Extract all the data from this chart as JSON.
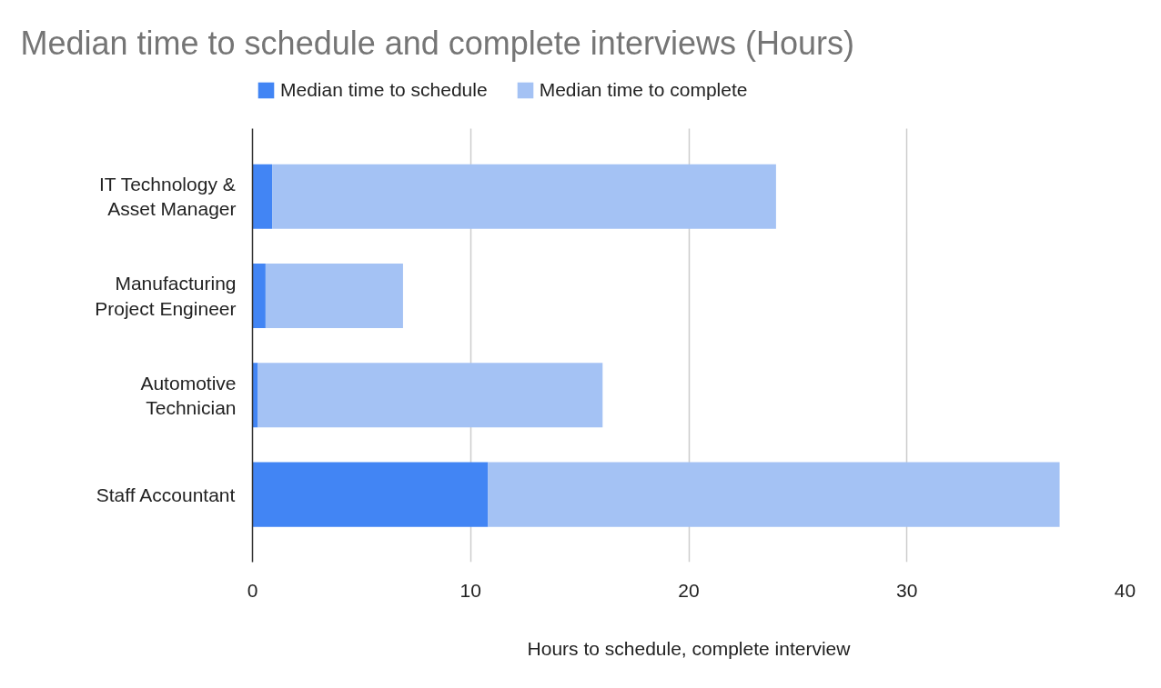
{
  "chart_data": {
    "type": "bar",
    "orientation": "horizontal",
    "stacked": true,
    "title": "Median time to schedule and complete interviews (Hours)",
    "xlabel": "Hours to schedule, complete interview",
    "categories": [
      "IT Technology & Asset Manager",
      "Manufacturing Project Engineer",
      "Automotive Technician",
      "Staff Accountant"
    ],
    "series": [
      {
        "name": "Median time to schedule",
        "color": "#4285f4",
        "values": [
          0.9,
          0.6,
          0.25,
          10.8
        ]
      },
      {
        "name": "Median time to complete",
        "color": "#a4c2f4",
        "values": [
          23.1,
          6.3,
          15.8,
          26.2
        ]
      }
    ],
    "xlim": [
      0,
      40
    ],
    "xticks": [
      0,
      10,
      20,
      30,
      40
    ],
    "grid": "x",
    "legend": "top"
  }
}
